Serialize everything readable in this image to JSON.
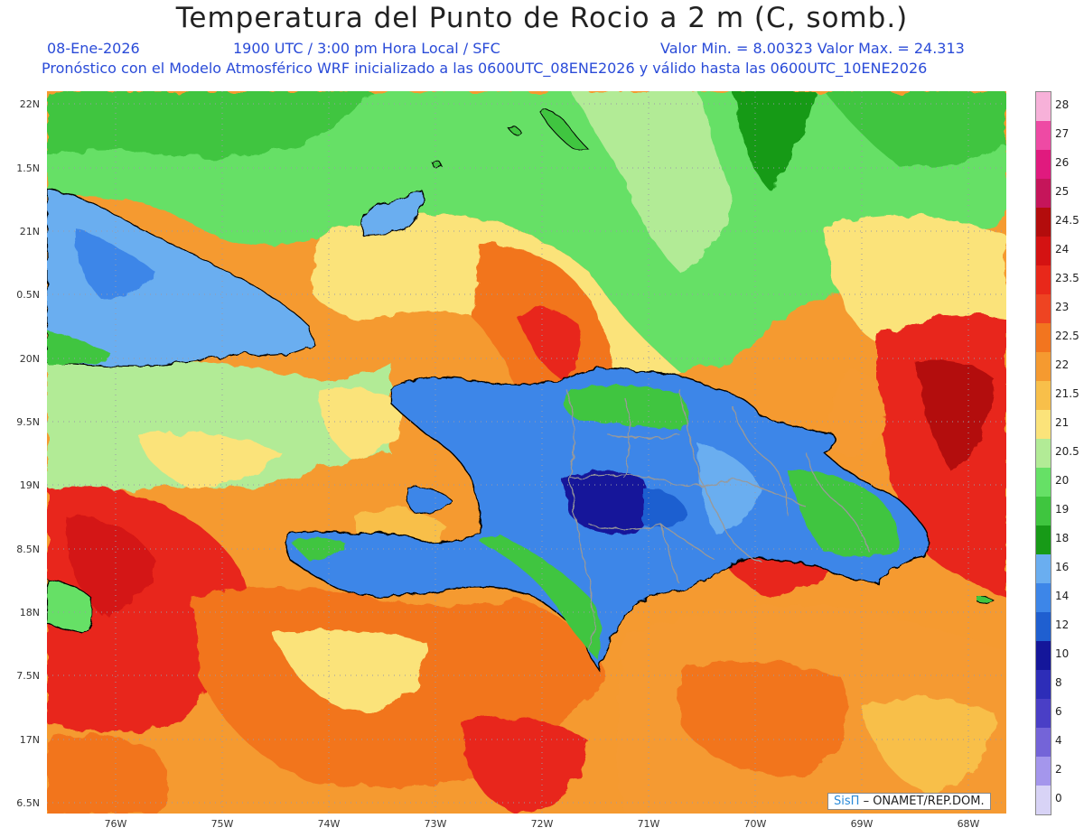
{
  "title": "Temperatura del Punto de Rocio a 2 m (C, somb.)",
  "subtitle": {
    "date": "08-Ene-2026",
    "time": "1900 UTC / 3:00 pm Hora Local / SFC",
    "minmax": "Valor Min. = 8.00323  Valor Max. = 24.313",
    "model": "Pronóstico con el Modelo Atmosférico WRF inicializado a las 0600UTC_08ENE2026 y válido hasta las  0600UTC_10ENE2026"
  },
  "lat_labels": [
    "22N",
    "1.5N",
    "21N",
    "0.5N",
    "20N",
    "9.5N",
    "19N",
    "8.5N",
    "18N",
    "7.5N",
    "17N",
    "6.5N"
  ],
  "lon_labels": [
    "76W",
    "75W",
    "74W",
    "73W",
    "72W",
    "71W",
    "70W",
    "69W",
    "68W"
  ],
  "colorbar": {
    "labels": [
      "28",
      "27",
      "26",
      "25",
      "24.5",
      "24",
      "23.5",
      "23",
      "22.5",
      "22",
      "21.5",
      "21",
      "20.5",
      "20",
      "19",
      "18",
      "16",
      "14",
      "12",
      "10",
      "8",
      "6",
      "4",
      "2",
      "0"
    ],
    "colors": [
      "#f7b1d9",
      "#ee4aa4",
      "#e01a7e",
      "#c5155a",
      "#b30c0c",
      "#d41212",
      "#e8281a",
      "#ee4422",
      "#f2751f",
      "#f59a30",
      "#f8bf4a",
      "#fbe37a",
      "#b2eb96",
      "#66e066",
      "#3fc53f",
      "#179a17",
      "#6aaef0",
      "#3d86e8",
      "#1f5fd0",
      "#14169a",
      "#2d2db8",
      "#4a3fc6",
      "#7464d8",
      "#a496ec",
      "#d8d3f6"
    ]
  },
  "credit": {
    "brand": "SisΠ",
    "text": "– ONAMET/REP.DOM."
  },
  "palette": {
    "ocean_warm": "#f59a30",
    "ocean_hot": "#e8281a",
    "land_moist": "#3d86e8",
    "land_green": "#3fc53f",
    "north_green": "#66e066"
  }
}
